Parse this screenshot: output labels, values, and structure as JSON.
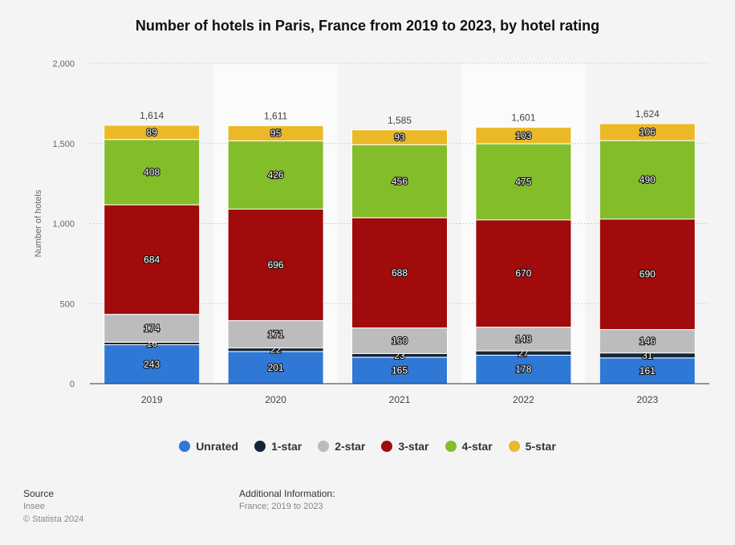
{
  "chart_data": {
    "type": "bar",
    "stacked": true,
    "title": "Number of hotels in Paris, France from 2019 to 2023, by hotel rating",
    "ylabel": "Number of hotels",
    "xlabel": "",
    "categories": [
      "2019",
      "2020",
      "2021",
      "2022",
      "2023"
    ],
    "ylim": [
      0,
      2000
    ],
    "yticks": [
      0,
      500,
      1000,
      1500,
      2000
    ],
    "ytick_labels": [
      "0",
      "500",
      "1,000",
      "1,500",
      "2,000"
    ],
    "grid": true,
    "legend_position": "bottom",
    "totals": [
      "1,614",
      "1,611",
      "1,585",
      "1,601",
      "1,624"
    ],
    "series": [
      {
        "name": "Unrated",
        "color": "#2f78d6",
        "values": [
          243,
          201,
          165,
          178,
          161
        ]
      },
      {
        "name": "1-star",
        "color": "#16263a",
        "values": [
          16,
          22,
          23,
          27,
          31
        ]
      },
      {
        "name": "2-star",
        "color": "#bcbcbc",
        "values": [
          174,
          171,
          160,
          148,
          146
        ]
      },
      {
        "name": "3-star",
        "color": "#a10b0b",
        "values": [
          684,
          696,
          688,
          670,
          690
        ]
      },
      {
        "name": "4-star",
        "color": "#84bd2a",
        "values": [
          408,
          426,
          456,
          475,
          490
        ]
      },
      {
        "name": "5-star",
        "color": "#ebb928",
        "values": [
          89,
          95,
          93,
          103,
          106
        ]
      }
    ]
  },
  "footer": {
    "source_label": "Source",
    "source_value": "Insee",
    "copyright": "© Statista 2024",
    "info_label": "Additional Information:",
    "info_value": "France; 2019 to 2023"
  }
}
